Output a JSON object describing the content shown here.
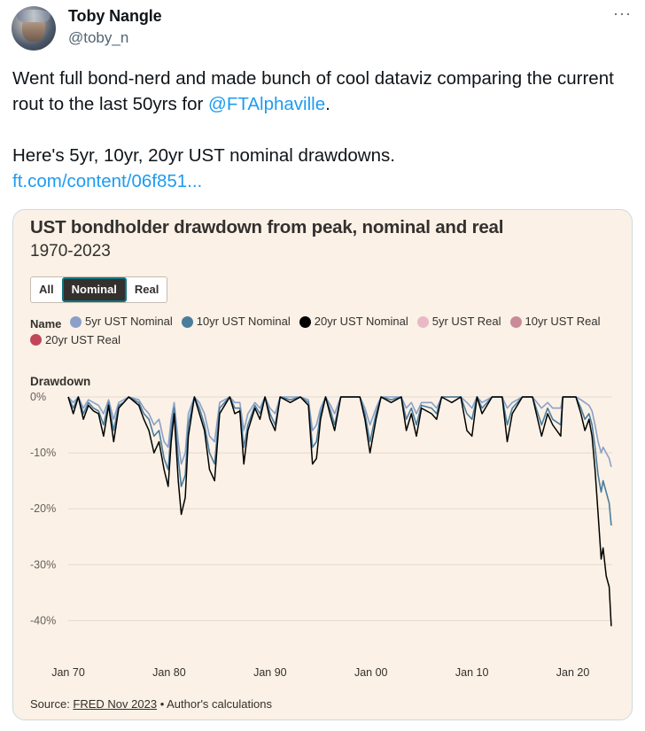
{
  "tweet": {
    "display_name": "Toby Nangle",
    "handle": "@toby_n",
    "more_label": "···",
    "text_line1_pre": "Went full bond-nerd and made bunch of cool dataviz comparing the current rout to the last 50yrs for ",
    "mention": "@FTAlphaville",
    "text_line1_post": ".",
    "text_line2": "Here's 5yr, 10yr, 20yr UST nominal drawdowns.",
    "link": "ft.com/content/06f851..."
  },
  "chart_card": {
    "title": "UST bondholder drawdown from peak, nominal and real",
    "subtitle": "1970-2023",
    "buttons": [
      {
        "label": "All",
        "active": false
      },
      {
        "label": "Nominal",
        "active": true
      },
      {
        "label": "Real",
        "active": false
      }
    ],
    "legend_title": "Name",
    "y_axis_title": "Drawdown",
    "source_label": "Source: ",
    "source_link": "FRED Nov 2023",
    "source_rest": " • Author's calculations"
  },
  "chart_data": {
    "type": "line",
    "title": "UST bondholder drawdown from peak, nominal and real",
    "subtitle": "1970-2023",
    "ylabel": "Drawdown",
    "xlim": [
      1970.0,
      2023.9
    ],
    "ylim": [
      -42,
      0
    ],
    "y_ticks": [
      {
        "value": 0,
        "label": "0%"
      },
      {
        "value": -10,
        "label": "-10%"
      },
      {
        "value": -20,
        "label": "-20%"
      },
      {
        "value": -30,
        "label": "-30%"
      },
      {
        "value": -40,
        "label": "-40%"
      }
    ],
    "x_ticks": [
      {
        "value": 1970,
        "label": "Jan 70"
      },
      {
        "value": 1980,
        "label": "Jan 80"
      },
      {
        "value": 1990,
        "label": "Jan 90"
      },
      {
        "value": 2000,
        "label": "Jan 00"
      },
      {
        "value": 2010,
        "label": "Jan 10"
      },
      {
        "value": 2020,
        "label": "Jan 20"
      }
    ],
    "grid": true,
    "legend_placement": "top",
    "series": [
      {
        "name": "5yr UST Nominal",
        "color": "#8aa0c8",
        "visible": true,
        "x": [
          1970.0,
          1970.5,
          1971.0,
          1971.5,
          1972.0,
          1972.5,
          1973.0,
          1973.5,
          1974.0,
          1974.5,
          1975.0,
          1975.5,
          1976.0,
          1977.0,
          1977.5,
          1978.0,
          1978.5,
          1979.0,
          1979.5,
          1979.9,
          1980.2,
          1980.5,
          1980.9,
          1981.2,
          1981.6,
          1981.9,
          1982.5,
          1983.0,
          1983.5,
          1984.0,
          1984.5,
          1985.0,
          1986.0,
          1986.5,
          1987.0,
          1987.4,
          1987.8,
          1988.5,
          1989.0,
          1989.5,
          1990.0,
          1990.5,
          1991.0,
          1992.0,
          1993.0,
          1993.8,
          1994.2,
          1994.6,
          1995.0,
          1995.5,
          1996.0,
          1996.4,
          1997.0,
          1998.0,
          1998.9,
          1999.4,
          1999.9,
          2000.5,
          2001.0,
          2002.0,
          2003.0,
          2003.5,
          2004.0,
          2004.5,
          2005.0,
          2006.0,
          2006.5,
          2007.0,
          2008.0,
          2008.9,
          2009.5,
          2010.0,
          2010.5,
          2011.0,
          2012.0,
          2013.0,
          2013.5,
          2014.0,
          2015.0,
          2016.0,
          2016.9,
          2017.5,
          2018.0,
          2018.8,
          2019.0,
          2019.5,
          2020.3,
          2020.8,
          2021.2,
          2021.6,
          2021.9,
          2022.2,
          2022.5,
          2022.8,
          2023.0,
          2023.3,
          2023.6,
          2023.8
        ],
        "y": [
          0,
          -1,
          0,
          -2,
          -0.5,
          -1,
          -1.5,
          -3,
          -0.5,
          -4,
          -1,
          -0.5,
          0,
          -0.5,
          -2,
          -3,
          -5,
          -4,
          -8,
          -9,
          -4,
          -1,
          -8,
          -12,
          -10,
          -3,
          0,
          -1,
          -3,
          -7,
          -8,
          -1,
          0,
          -1,
          -1,
          -6,
          -3,
          -1,
          -2,
          0,
          -2,
          -3,
          0,
          0,
          0,
          -0.5,
          -6,
          -5,
          -2,
          0,
          -1.5,
          -3,
          0,
          0,
          0,
          -2,
          -5,
          -2,
          0,
          0,
          0,
          -2,
          -1,
          -3,
          -1,
          -1,
          -2,
          0,
          0,
          0,
          -1,
          -2,
          0,
          -1,
          0,
          0,
          -2,
          -1,
          0,
          0,
          -2,
          -1,
          -2,
          -2,
          0,
          0,
          0,
          -0.5,
          -1,
          -1.5,
          -2.5,
          -5,
          -8,
          -10,
          -9,
          -10,
          -11,
          -12.5
        ]
      },
      {
        "name": "10yr UST Nominal",
        "color": "#4a7d9c",
        "visible": true,
        "x": [
          1970.0,
          1970.5,
          1971.0,
          1971.5,
          1972.0,
          1972.5,
          1973.0,
          1973.5,
          1974.0,
          1974.5,
          1975.0,
          1975.5,
          1976.0,
          1977.0,
          1977.5,
          1978.0,
          1978.5,
          1979.0,
          1979.5,
          1979.9,
          1980.2,
          1980.5,
          1980.9,
          1981.2,
          1981.6,
          1981.9,
          1982.5,
          1983.0,
          1983.5,
          1984.0,
          1984.5,
          1985.0,
          1986.0,
          1986.5,
          1987.0,
          1987.4,
          1987.8,
          1988.5,
          1989.0,
          1989.5,
          1990.0,
          1990.5,
          1991.0,
          1992.0,
          1993.0,
          1993.8,
          1994.2,
          1994.6,
          1995.0,
          1995.5,
          1996.0,
          1996.4,
          1997.0,
          1998.0,
          1998.9,
          1999.4,
          1999.9,
          2000.5,
          2001.0,
          2002.0,
          2003.0,
          2003.5,
          2004.0,
          2004.5,
          2005.0,
          2006.0,
          2006.5,
          2007.0,
          2008.0,
          2008.9,
          2009.5,
          2010.0,
          2010.5,
          2011.0,
          2012.0,
          2013.0,
          2013.5,
          2014.0,
          2015.0,
          2016.0,
          2016.9,
          2017.5,
          2018.0,
          2018.8,
          2019.0,
          2019.5,
          2020.3,
          2020.8,
          2021.2,
          2021.6,
          2021.9,
          2022.2,
          2022.5,
          2022.8,
          2023.0,
          2023.3,
          2023.6,
          2023.8
        ],
        "y": [
          0,
          -2,
          0,
          -3,
          -1,
          -2,
          -2.5,
          -5,
          -1,
          -6,
          -1.5,
          -1,
          0,
          -1,
          -3,
          -4,
          -7,
          -6,
          -11,
          -13,
          -6,
          -2,
          -11,
          -16,
          -14,
          -5,
          0,
          -2,
          -5,
          -10,
          -12,
          -2,
          0,
          -2,
          -2,
          -9,
          -5,
          -1.5,
          -3,
          0,
          -3,
          -5,
          0,
          -0.5,
          0,
          -1,
          -9,
          -8,
          -3,
          0,
          -2.5,
          -5,
          0,
          0,
          0,
          -3,
          -8,
          -3,
          0,
          -0.5,
          0,
          -4,
          -2,
          -5,
          -1.5,
          -2,
          -3,
          0,
          0,
          0,
          -3,
          -4,
          0,
          -2,
          0,
          0,
          -5,
          -2,
          0,
          0,
          -5,
          -2,
          -4,
          -5,
          0,
          0,
          0,
          -2,
          -4,
          -3,
          -5,
          -9,
          -14,
          -17,
          -15,
          -17,
          -19,
          -23
        ]
      },
      {
        "name": "20yr UST Nominal",
        "color": "#000000",
        "visible": true,
        "x": [
          1970.0,
          1970.5,
          1971.0,
          1971.5,
          1972.0,
          1972.5,
          1973.0,
          1973.5,
          1974.0,
          1974.5,
          1975.0,
          1975.5,
          1976.0,
          1977.0,
          1977.5,
          1978.0,
          1978.5,
          1979.0,
          1979.5,
          1979.9,
          1980.2,
          1980.5,
          1980.9,
          1981.2,
          1981.6,
          1981.9,
          1982.5,
          1983.0,
          1983.5,
          1984.0,
          1984.5,
          1985.0,
          1986.0,
          1986.5,
          1987.0,
          1987.4,
          1987.8,
          1988.5,
          1989.0,
          1989.5,
          1990.0,
          1990.5,
          1991.0,
          1992.0,
          1993.0,
          1993.8,
          1994.2,
          1994.6,
          1995.0,
          1995.5,
          1996.0,
          1996.4,
          1997.0,
          1998.0,
          1998.9,
          1999.4,
          1999.9,
          2000.5,
          2001.0,
          2002.0,
          2003.0,
          2003.5,
          2004.0,
          2004.5,
          2005.0,
          2006.0,
          2006.5,
          2007.0,
          2008.0,
          2008.9,
          2009.5,
          2010.0,
          2010.5,
          2011.0,
          2012.0,
          2013.0,
          2013.5,
          2014.0,
          2015.0,
          2016.0,
          2016.9,
          2017.5,
          2018.0,
          2018.8,
          2019.0,
          2019.5,
          2020.3,
          2020.8,
          2021.2,
          2021.6,
          2021.9,
          2022.2,
          2022.5,
          2022.8,
          2023.0,
          2023.3,
          2023.6,
          2023.8
        ],
        "y": [
          0,
          -3,
          0,
          -4,
          -1.5,
          -2.5,
          -3,
          -7,
          -1.5,
          -8,
          -2,
          -1,
          0,
          -1.5,
          -4,
          -6,
          -10,
          -8,
          -13,
          -16,
          -8,
          -3,
          -15,
          -21,
          -18,
          -7,
          0,
          -3,
          -6,
          -13,
          -15,
          -3,
          0,
          -3,
          -2.5,
          -12,
          -6,
          -2,
          -4,
          0,
          -4,
          -6,
          0,
          -1,
          0,
          -1.5,
          -12,
          -11,
          -4,
          0,
          -3.5,
          -6,
          0,
          0,
          0,
          -4,
          -10,
          -4,
          0,
          -1,
          0,
          -6,
          -3,
          -7,
          -2,
          -3,
          -4,
          0,
          -1,
          0,
          -6,
          -7,
          0,
          -3,
          0,
          0,
          -8,
          -3,
          0,
          0,
          -7,
          -3,
          -5,
          -7,
          0,
          0,
          0,
          -3,
          -6,
          -4,
          -7,
          -13,
          -21,
          -29,
          -27,
          -32,
          -34,
          -41
        ]
      },
      {
        "name": "5yr UST Real",
        "color": "#e9b8c6",
        "visible": false
      },
      {
        "name": "10yr UST Real",
        "color": "#c98b98",
        "visible": false
      },
      {
        "name": "20yr UST Real",
        "color": "#c0465a",
        "visible": false
      }
    ]
  }
}
